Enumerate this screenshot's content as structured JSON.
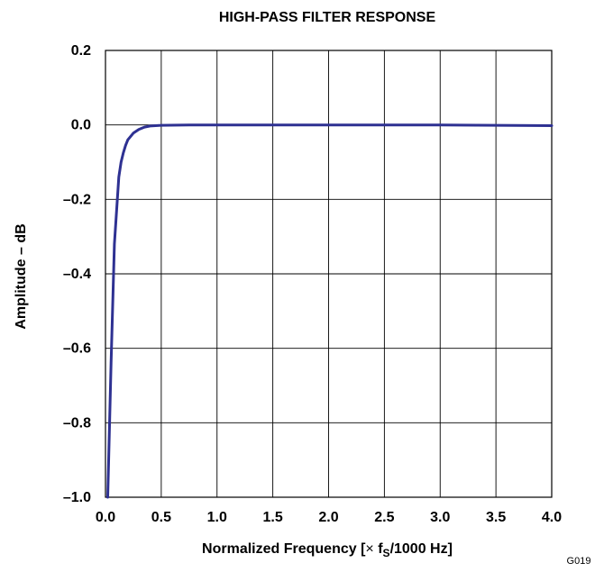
{
  "chart_data": {
    "type": "line",
    "title": "HIGH-PASS FILTER RESPONSE",
    "xlabel_prefix": "Normalized Frequency [",
    "xlabel_times": "×",
    "xlabel_f": " f",
    "xlabel_sub": "S",
    "xlabel_suffix": "/1000 Hz]",
    "ylabel": "Amplitude – dB",
    "figure_id": "G019",
    "xlim": [
      0,
      4
    ],
    "ylim": [
      -1,
      0.2
    ],
    "x_ticks": [
      "0.0",
      "0.5",
      "1.0",
      "1.5",
      "2.0",
      "2.5",
      "3.0",
      "3.5",
      "4.0"
    ],
    "x_tick_values": [
      0,
      0.5,
      1,
      1.5,
      2,
      2.5,
      3,
      3.5,
      4
    ],
    "y_ticks": [
      "0.2",
      "0.0",
      "–0.2",
      "–0.4",
      "–0.6",
      "–0.8",
      "–1.0"
    ],
    "y_tick_values": [
      0.2,
      0,
      -0.2,
      -0.4,
      -0.6,
      -0.8,
      -1
    ],
    "grid": true,
    "series": [
      {
        "color": "#2e3192",
        "x": [
          0.02,
          0.05,
          0.08,
          0.12,
          0.14,
          0.16,
          0.18,
          0.2,
          0.25,
          0.3,
          0.35,
          0.4,
          0.5,
          0.75,
          1.0,
          1.5,
          2.0,
          2.5,
          3.0,
          3.5,
          4.0
        ],
        "y": [
          -1.0,
          -0.64,
          -0.32,
          -0.14,
          -0.1,
          -0.075,
          -0.055,
          -0.04,
          -0.022,
          -0.012,
          -0.006,
          -0.003,
          -0.001,
          0.0,
          0.0,
          0.0,
          0.0,
          0.0,
          0.0,
          -0.001,
          -0.002
        ]
      }
    ]
  }
}
